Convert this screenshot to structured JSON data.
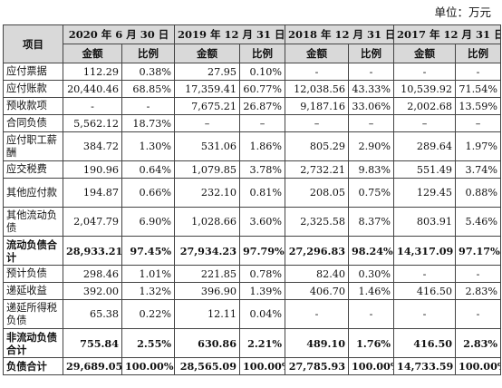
{
  "unit_label": "单位：万元",
  "header": {
    "item": "项目",
    "periods": [
      "2020 年 6 月 30 日",
      "2019 年 12 月 31 日",
      "2018 年 12 月 31 日",
      "2017 年 12 月 31 日"
    ],
    "amount": "金额",
    "ratio": "比例"
  },
  "rows": [
    {
      "label": "应付票据",
      "cells": [
        "112.29",
        "0.38%",
        "27.95",
        "0.10%",
        "-",
        "-",
        "-",
        "-"
      ],
      "bold": false,
      "tall": false
    },
    {
      "label": "应付账款",
      "cells": [
        "20,440.46",
        "68.85%",
        "17,359.41",
        "60.77%",
        "12,038.56",
        "43.33%",
        "10,539.92",
        "71.54%"
      ],
      "bold": false,
      "tall": false
    },
    {
      "label": "预收款项",
      "cells": [
        "-",
        "-",
        "7,675.21",
        "26.87%",
        "9,187.16",
        "33.06%",
        "2,002.68",
        "13.59%"
      ],
      "bold": false,
      "tall": false
    },
    {
      "label": "合同负债",
      "cells": [
        "5,562.12",
        "18.73%",
        "–",
        "–",
        "–",
        "–",
        "–",
        "–"
      ],
      "bold": false,
      "tall": false
    },
    {
      "label": "应付职工薪酬",
      "cells": [
        "384.72",
        "1.30%",
        "531.06",
        "1.86%",
        "805.29",
        "2.90%",
        "289.64",
        "1.97%"
      ],
      "bold": false,
      "tall": true
    },
    {
      "label": "应交税费",
      "cells": [
        "190.96",
        "0.64%",
        "1,079.85",
        "3.78%",
        "2,732.21",
        "9.83%",
        "551.49",
        "3.74%"
      ],
      "bold": false,
      "tall": false
    },
    {
      "label": "其他应付款",
      "cells": [
        "194.87",
        "0.66%",
        "232.10",
        "0.81%",
        "208.05",
        "0.75%",
        "129.45",
        "0.88%"
      ],
      "bold": false,
      "tall": true
    },
    {
      "label": "其他流动负债",
      "cells": [
        "2,047.79",
        "6.90%",
        "1,028.66",
        "3.60%",
        "2,325.58",
        "8.37%",
        "803.91",
        "5.46%"
      ],
      "bold": false,
      "tall": true
    },
    {
      "label": "流动负债合计",
      "cells": [
        "28,933.21",
        "97.45%",
        "27,934.23",
        "97.79%",
        "27,296.83",
        "98.24%",
        "14,317.09",
        "97.17%"
      ],
      "bold": true,
      "tall": true
    },
    {
      "label": "预计负债",
      "cells": [
        "298.46",
        "1.01%",
        "221.85",
        "0.78%",
        "82.40",
        "0.30%",
        "-",
        "-"
      ],
      "bold": false,
      "tall": false
    },
    {
      "label": "递延收益",
      "cells": [
        "392.00",
        "1.32%",
        "396.90",
        "1.39%",
        "406.70",
        "1.46%",
        "416.50",
        "2.83%"
      ],
      "bold": false,
      "tall": false
    },
    {
      "label": "递延所得税负债",
      "cells": [
        "65.38",
        "0.22%",
        "12.11",
        "0.04%",
        "-",
        "-",
        "-",
        "-"
      ],
      "bold": false,
      "tall": true
    },
    {
      "label": "非流动负债合计",
      "cells": [
        "755.84",
        "2.55%",
        "630.86",
        "2.21%",
        "489.10",
        "1.76%",
        "416.50",
        "2.83%"
      ],
      "bold": true,
      "tall": true
    },
    {
      "label": "负债合计",
      "cells": [
        "29,689.05",
        "100.00%",
        "28,565.09",
        "100.00%",
        "27,785.93",
        "100.00%",
        "14,733.59",
        "100.00%"
      ],
      "bold": true,
      "tall": false
    }
  ]
}
